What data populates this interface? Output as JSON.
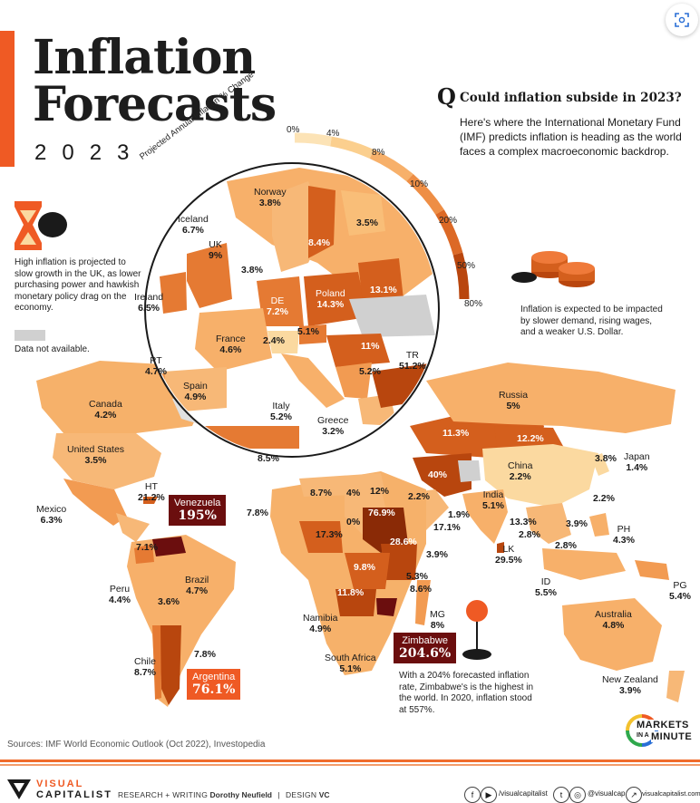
{
  "title_line1": "Inflation",
  "title_line2": "Forecasts",
  "year": "2023",
  "question_letter": "Q",
  "question": "Could inflation subside in 2023?",
  "intro": "Here's where the International Monetary Fund (IMF) predicts inflation is heading as the world faces a complex macroeconomic backdrop.",
  "legend": {
    "title": "Projected Annual Inflation % Change",
    "ticks": [
      "0%",
      "4%",
      "8%",
      "10%",
      "20%",
      "50%",
      "80%"
    ],
    "colors": [
      "#fbd9a0",
      "#f9be78",
      "#f29b52",
      "#e57a33",
      "#d45f1d",
      "#b8460e",
      "#8a2a06"
    ],
    "no_data_label": "Data not available.",
    "no_data_color": "#d0d0d0"
  },
  "notes": {
    "uk": "High inflation is projected to slow growth in the UK, as lower purchasing power and hawkish monetary policy drag on the economy.",
    "coins": "Inflation is expected to be impacted by slower demand, rising wages, and a weaker U.S. Dollar.",
    "zimbabwe": "With a 204% forecasted inflation rate, Zimbabwe's is the highest in the world. In 2020, inflation stood at 557%."
  },
  "europe": [
    {
      "name": "Norway",
      "value": "3.8%"
    },
    {
      "name": "Iceland",
      "value": "6.7%"
    },
    {
      "name": "UK",
      "value": "9%"
    },
    {
      "name": "Ireland",
      "value": "6.5%"
    },
    {
      "name": "DE",
      "value": "7.2%"
    },
    {
      "name": "Poland",
      "value": "14.3%"
    },
    {
      "name": "France",
      "value": "4.6%"
    },
    {
      "name": "PT",
      "value": "4.7%"
    },
    {
      "name": "Spain",
      "value": "4.9%"
    },
    {
      "name": "Italy",
      "value": "5.2%"
    },
    {
      "name": "Greece",
      "value": "3.2%"
    },
    {
      "name": "TR",
      "value": "51.2%"
    },
    {
      "name": "",
      "value": "3.5%"
    },
    {
      "name": "",
      "value": "8.4%"
    },
    {
      "name": "",
      "value": "3.8%"
    },
    {
      "name": "",
      "value": "13.1%"
    },
    {
      "name": "",
      "value": "5.1%"
    },
    {
      "name": "",
      "value": "2.4%"
    },
    {
      "name": "",
      "value": "11%"
    },
    {
      "name": "",
      "value": "5.2%"
    },
    {
      "name": "",
      "value": "8.5%"
    }
  ],
  "world": [
    {
      "name": "Canada",
      "value": "4.2%"
    },
    {
      "name": "United States",
      "value": "3.5%"
    },
    {
      "name": "HT",
      "value": "21.2%"
    },
    {
      "name": "Mexico",
      "value": "6.3%"
    },
    {
      "name": "Peru",
      "value": "4.4%"
    },
    {
      "name": "Brazil",
      "value": "4.7%"
    },
    {
      "name": "Chile",
      "value": "8.7%"
    },
    {
      "name": "Russia",
      "value": "5%"
    },
    {
      "name": "China",
      "value": "2.2%"
    },
    {
      "name": "Japan",
      "value": "1.4%"
    },
    {
      "name": "India",
      "value": "5.1%"
    },
    {
      "name": "PH",
      "value": "4.3%"
    },
    {
      "name": "LK",
      "value": "29.5%"
    },
    {
      "name": "ID",
      "value": "5.5%"
    },
    {
      "name": "PG",
      "value": "5.4%"
    },
    {
      "name": "Australia",
      "value": "4.8%"
    },
    {
      "name": "New Zealand",
      "value": "3.9%"
    },
    {
      "name": "Namibia",
      "value": "4.9%"
    },
    {
      "name": "South Africa",
      "value": "5.1%"
    },
    {
      "name": "MG",
      "value": "8%"
    }
  ],
  "map_values": [
    "11.3%",
    "12.2%",
    "3.8%",
    "40%",
    "2.2%",
    "2.2%",
    "1.9%",
    "17.1%",
    "13.3%",
    "2.8%",
    "3.9%",
    "2.8%",
    "8.7%",
    "4%",
    "12%",
    "7.8%",
    "0%",
    "76.9%",
    "17.3%",
    "28.6%",
    "3.9%",
    "9.8%",
    "5.3%",
    "11.8%",
    "8.6%",
    "7.1%",
    "3.6%",
    "7.8%"
  ],
  "highlights": {
    "venezuela": {
      "name": "Venezuela",
      "value": "195%"
    },
    "zimbabwe": {
      "name": "Zimbabwe",
      "value": "204.6%"
    },
    "argentina": {
      "name": "Argentina",
      "value": "76.1%"
    }
  },
  "sources": "Sources: IMF World Economic Outlook (Oct 2022), Investopedia",
  "brand": {
    "line1": "VISUAL",
    "line2": "CAPITALIST"
  },
  "credits": {
    "research_label": "RESEARCH + WRITING",
    "research_name": "Dorothy Neufield",
    "design_label": "DESIGN",
    "design_name": "VC"
  },
  "social": {
    "facebook_youtube": "/visualcapitalist",
    "twitter_instagram": "@visualcap",
    "web": "visualcapitalist.com"
  },
  "mim": {
    "line1": "MARKETS",
    "line2a": "IN A",
    "line2b": "MINUTE"
  }
}
